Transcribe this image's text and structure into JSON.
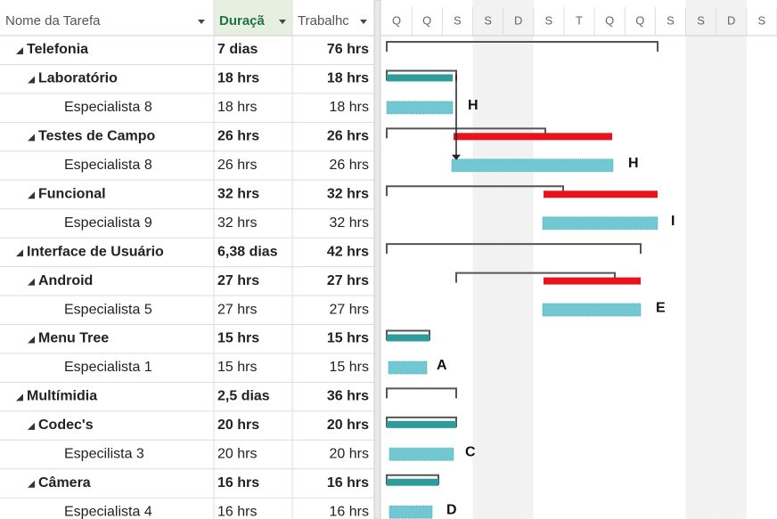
{
  "header": {
    "columns": [
      "Nome da Tarefa",
      "Duraçã",
      "Trabalhc"
    ],
    "days": [
      "Q",
      "Q",
      "S",
      "S",
      "D",
      "S",
      "T",
      "Q",
      "Q",
      "S",
      "S",
      "D",
      "S"
    ]
  },
  "rows": [
    {
      "name": "Telefonia",
      "duration": "7 dias",
      "work": "76 hrs"
    },
    {
      "name": "Laboratório",
      "duration": "18 hrs",
      "work": "18 hrs"
    },
    {
      "name": "Especialista 8",
      "duration": "18 hrs",
      "work": "18 hrs"
    },
    {
      "name": "Testes de Campo",
      "duration": "26 hrs",
      "work": "26 hrs"
    },
    {
      "name": "Especialista 8",
      "duration": "26 hrs",
      "work": "26 hrs"
    },
    {
      "name": "Funcional",
      "duration": "32 hrs",
      "work": "32 hrs"
    },
    {
      "name": "Especialista 9",
      "duration": "32 hrs",
      "work": "32 hrs"
    },
    {
      "name": "Interface de Usuário",
      "duration": "6,38 dias",
      "work": "42 hrs"
    },
    {
      "name": "Android",
      "duration": "27 hrs",
      "work": "27 hrs"
    },
    {
      "name": "Especialista 5",
      "duration": "27 hrs",
      "work": "27 hrs"
    },
    {
      "name": "Menu Tree",
      "duration": "15 hrs",
      "work": "15 hrs"
    },
    {
      "name": "Especialista 1",
      "duration": "15 hrs",
      "work": "15 hrs"
    },
    {
      "name": "Multímidia",
      "duration": "2,5 dias",
      "work": "36 hrs"
    },
    {
      "name": "Codec's",
      "duration": "20 hrs",
      "work": "20 hrs"
    },
    {
      "name": "Especilista 3",
      "duration": "20 hrs",
      "work": "20 hrs"
    },
    {
      "name": "Câmera",
      "duration": "16 hrs",
      "work": "16 hrs"
    },
    {
      "name": "Especialista 4",
      "duration": "16 hrs",
      "work": "16 hrs"
    }
  ],
  "bar_labels": [
    "H",
    "H",
    "I",
    "E",
    "A",
    "C",
    "D"
  ]
}
